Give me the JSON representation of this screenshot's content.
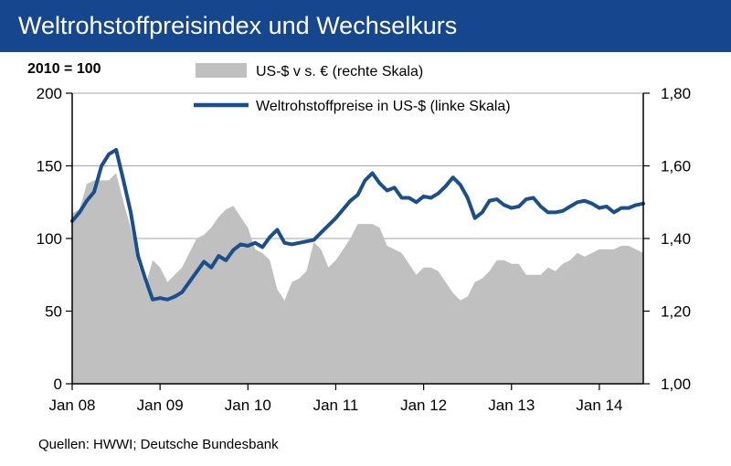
{
  "header": {
    "title": "Weltrohstoffpreisindex und Wechselkurs"
  },
  "source": "Quellen:  HWWI;  Deutsche  Bundesbank",
  "chart_data": {
    "type": "line",
    "base_label": "2010 = 100",
    "x_tick_labels": [
      "Jan 08",
      "Jan 09",
      "Jan 10",
      "Jan 11",
      "Jan 12",
      "Jan 13",
      "Jan 14"
    ],
    "x_month_range": [
      0,
      78
    ],
    "left_axis": {
      "ylim": [
        0,
        200
      ],
      "ticks": [
        0,
        50,
        100,
        150,
        200
      ],
      "tick_labels": [
        "0",
        "50",
        "100",
        "150",
        "200"
      ]
    },
    "right_axis": {
      "ylim": [
        1.0,
        1.8
      ],
      "ticks": [
        1.0,
        1.2,
        1.4,
        1.6,
        1.8
      ],
      "tick_labels": [
        "1,00",
        "1,20",
        "1,40",
        "1,60",
        "1,80"
      ]
    },
    "gridlines": true,
    "legend_position": "top",
    "series": [
      {
        "name": "US-$ v s. € (rechte Skala)",
        "kind": "area",
        "axis": "right",
        "color": "#c0c0c0",
        "x": [
          0,
          1,
          2,
          3,
          4,
          5,
          6,
          7,
          8,
          9,
          10,
          11,
          12,
          13,
          14,
          15,
          16,
          17,
          18,
          19,
          20,
          21,
          22,
          23,
          24,
          25,
          26,
          27,
          28,
          29,
          30,
          31,
          32,
          33,
          34,
          35,
          36,
          37,
          38,
          39,
          40,
          41,
          42,
          43,
          44,
          45,
          46,
          47,
          48,
          49,
          50,
          51,
          52,
          53,
          54,
          55,
          56,
          57,
          58,
          59,
          60,
          61,
          62,
          63,
          64,
          65,
          66,
          67,
          68,
          69,
          70,
          71,
          72,
          73,
          74,
          75,
          76,
          77,
          78
        ],
        "y": [
          1.47,
          1.48,
          1.55,
          1.56,
          1.56,
          1.56,
          1.58,
          1.5,
          1.43,
          1.33,
          1.27,
          1.34,
          1.32,
          1.28,
          1.3,
          1.32,
          1.36,
          1.4,
          1.41,
          1.43,
          1.46,
          1.48,
          1.49,
          1.46,
          1.43,
          1.37,
          1.36,
          1.34,
          1.26,
          1.23,
          1.28,
          1.29,
          1.31,
          1.39,
          1.37,
          1.32,
          1.34,
          1.37,
          1.4,
          1.44,
          1.44,
          1.44,
          1.43,
          1.38,
          1.37,
          1.36,
          1.33,
          1.3,
          1.32,
          1.32,
          1.31,
          1.28,
          1.25,
          1.23,
          1.24,
          1.28,
          1.29,
          1.31,
          1.34,
          1.34,
          1.33,
          1.33,
          1.3,
          1.3,
          1.3,
          1.32,
          1.31,
          1.33,
          1.34,
          1.36,
          1.35,
          1.36,
          1.37,
          1.37,
          1.37,
          1.38,
          1.38,
          1.37,
          1.36
        ]
      },
      {
        "name": "Weltrohstoffpreise in US-$ (linke Skala)",
        "kind": "line",
        "axis": "left",
        "color": "#1a4f8b",
        "x": [
          0,
          1,
          2,
          3,
          4,
          5,
          6,
          7,
          8,
          9,
          10,
          11,
          12,
          13,
          14,
          15,
          16,
          17,
          18,
          19,
          20,
          21,
          22,
          23,
          24,
          25,
          26,
          27,
          28,
          29,
          30,
          31,
          32,
          33,
          34,
          35,
          36,
          37,
          38,
          39,
          40,
          41,
          42,
          43,
          44,
          45,
          46,
          47,
          48,
          49,
          50,
          51,
          52,
          53,
          54,
          55,
          56,
          57,
          58,
          59,
          60,
          61,
          62,
          63,
          64,
          65,
          66,
          67,
          68,
          69,
          70,
          71,
          72,
          73,
          74,
          75,
          76,
          77,
          78
        ],
        "y": [
          112,
          118,
          126,
          132,
          150,
          158,
          161,
          140,
          118,
          88,
          72,
          58,
          59,
          58,
          60,
          63,
          70,
          77,
          84,
          80,
          88,
          85,
          92,
          96,
          95,
          97,
          94,
          101,
          106,
          97,
          96,
          97,
          98,
          99,
          104,
          109,
          114,
          120,
          126,
          130,
          140,
          145,
          138,
          133,
          135,
          128,
          128,
          125,
          129,
          128,
          131,
          136,
          142,
          137,
          128,
          114,
          118,
          126,
          127,
          123,
          121,
          122,
          127,
          128,
          122,
          118,
          118,
          119,
          122,
          125,
          126,
          124,
          121,
          122,
          118,
          121,
          121,
          123,
          124
        ]
      }
    ]
  }
}
